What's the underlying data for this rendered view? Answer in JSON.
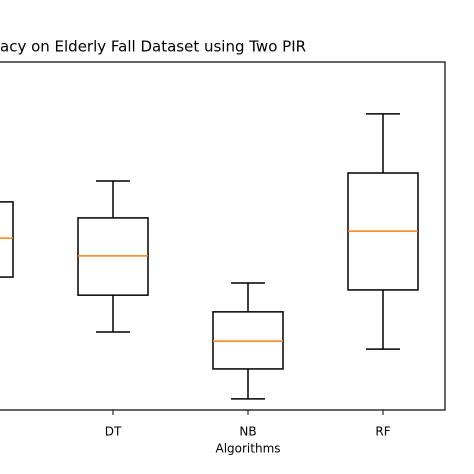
{
  "chart_data": {
    "type": "box",
    "title": "acy on Elderly Fall Dataset using Two PIR",
    "xlabel": "Algorithms",
    "categories": [
      null,
      "DT",
      "NB",
      "RF"
    ],
    "whislo": [
      null,
      22.4,
      3.2,
      17.5
    ],
    "q1": [
      38.2,
      33.0,
      11.8,
      34.5
    ],
    "median": [
      49.4,
      44.3,
      19.8,
      51.4
    ],
    "q3": [
      59.8,
      55.2,
      28.2,
      68.1
    ],
    "whishi": [
      null,
      65.8,
      36.5,
      85.1
    ],
    "box_color": "#000000",
    "median_color": "#ff7f0e",
    "ylim": [
      0,
      100
    ]
  }
}
